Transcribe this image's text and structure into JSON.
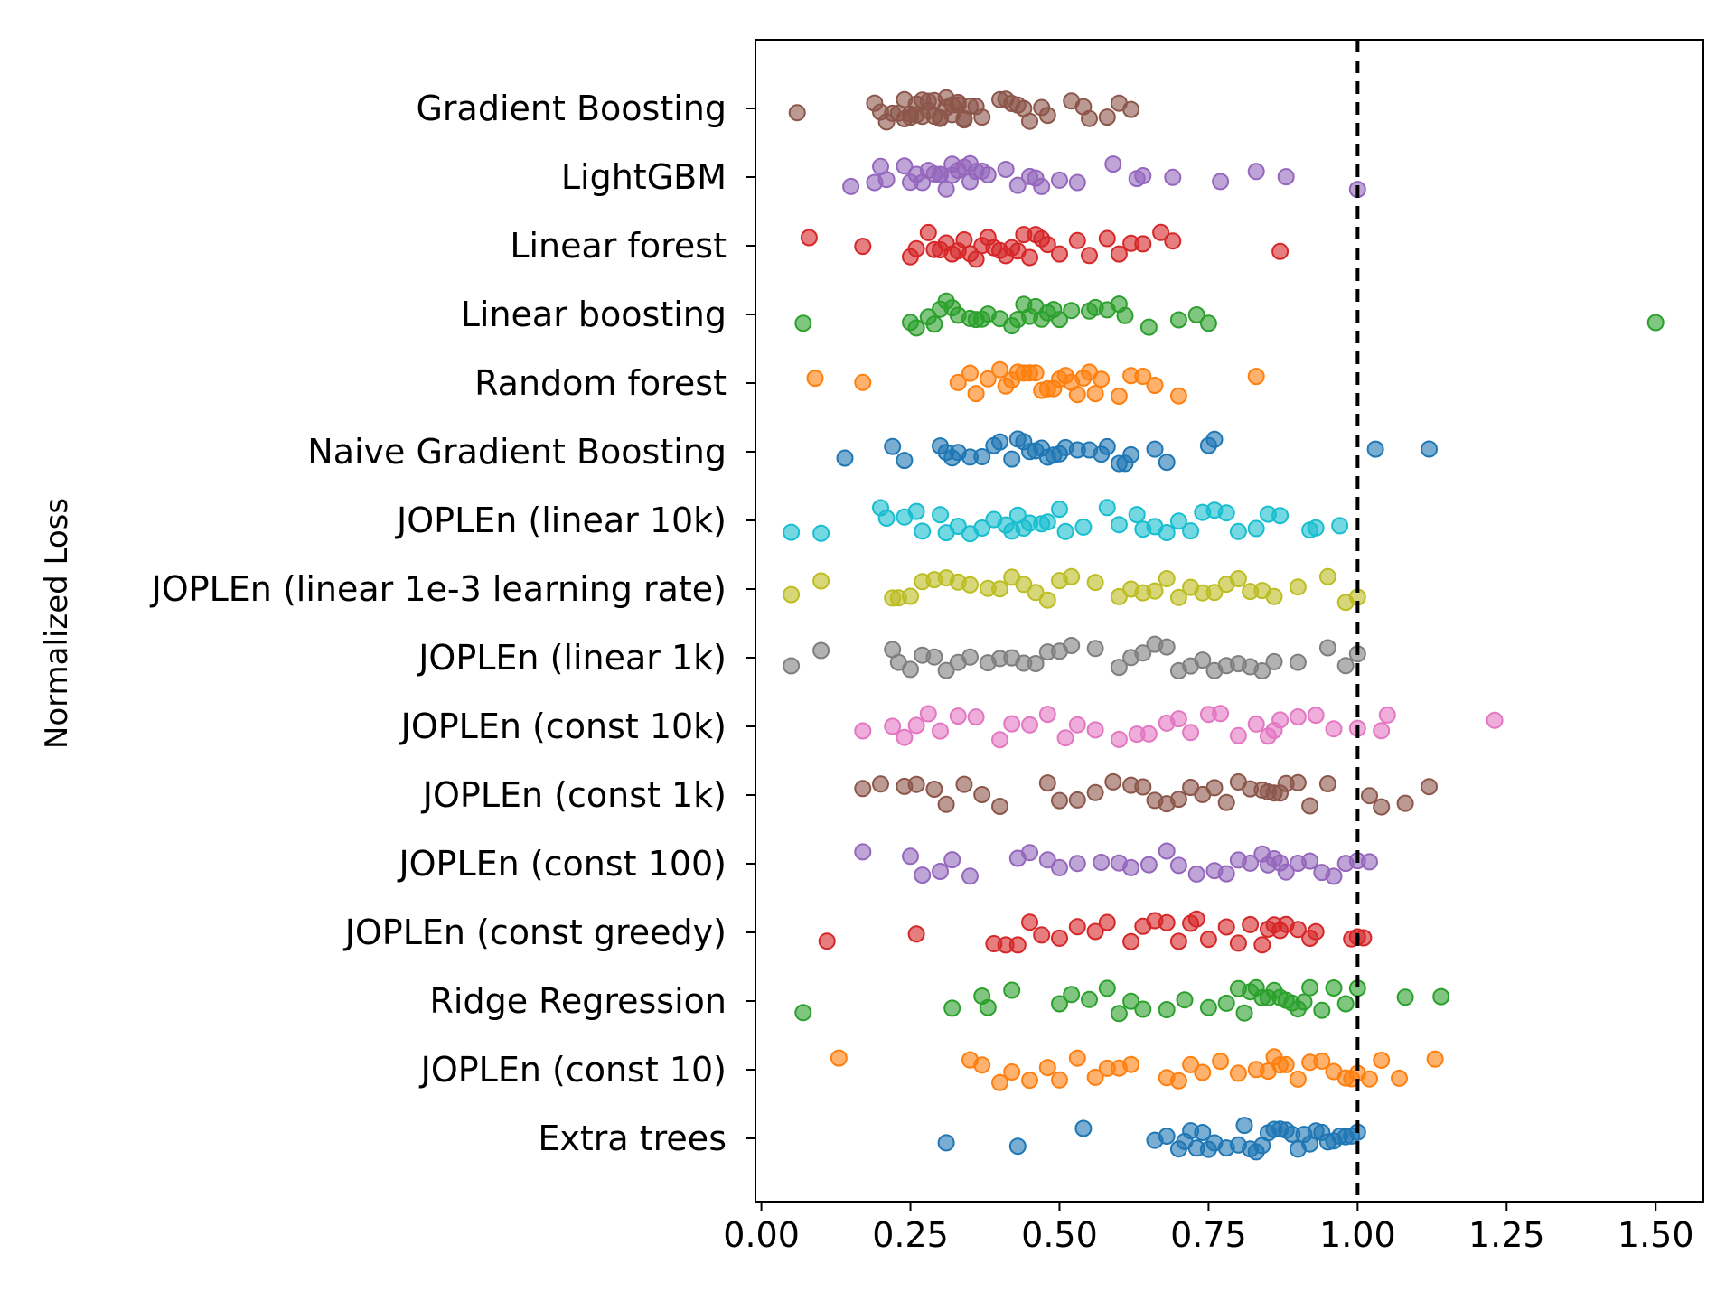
{
  "chart_data": {
    "type": "scatter",
    "title": "",
    "xlabel": "",
    "ylabel": "Normalized Loss",
    "xlim": [
      -0.01,
      1.58
    ],
    "xticks": [
      "0.00",
      "0.25",
      "0.50",
      "0.75",
      "1.00",
      "1.25",
      "1.50"
    ],
    "reference_line": {
      "x": 1.0,
      "style": "dashed",
      "color": "#000000"
    },
    "grid": false,
    "legend": "none",
    "marker_alpha": 0.6,
    "series": [
      {
        "name": "Gradient Boosting",
        "color": "#8c564b",
        "values": [
          0.06,
          0.19,
          0.2,
          0.21,
          0.22,
          0.23,
          0.24,
          0.24,
          0.25,
          0.25,
          0.26,
          0.26,
          0.27,
          0.27,
          0.28,
          0.28,
          0.29,
          0.29,
          0.3,
          0.3,
          0.31,
          0.31,
          0.32,
          0.32,
          0.33,
          0.33,
          0.34,
          0.34,
          0.35,
          0.36,
          0.37,
          0.4,
          0.41,
          0.42,
          0.43,
          0.44,
          0.45,
          0.47,
          0.48,
          0.52,
          0.54,
          0.55,
          0.58,
          0.6,
          0.62
        ]
      },
      {
        "name": "LightGBM",
        "color": "#9467bd",
        "values": [
          0.15,
          0.19,
          0.2,
          0.21,
          0.24,
          0.25,
          0.26,
          0.27,
          0.28,
          0.29,
          0.3,
          0.3,
          0.31,
          0.32,
          0.32,
          0.33,
          0.34,
          0.35,
          0.35,
          0.36,
          0.37,
          0.38,
          0.41,
          0.43,
          0.45,
          0.46,
          0.47,
          0.5,
          0.53,
          0.59,
          0.63,
          0.64,
          0.69,
          0.77,
          0.83,
          0.88,
          1.0
        ]
      },
      {
        "name": "Linear forest",
        "color": "#d62728",
        "values": [
          0.08,
          0.17,
          0.25,
          0.26,
          0.28,
          0.29,
          0.3,
          0.31,
          0.32,
          0.33,
          0.34,
          0.35,
          0.36,
          0.37,
          0.38,
          0.39,
          0.4,
          0.41,
          0.42,
          0.43,
          0.44,
          0.45,
          0.46,
          0.47,
          0.48,
          0.5,
          0.53,
          0.55,
          0.58,
          0.6,
          0.62,
          0.64,
          0.67,
          0.69,
          0.87
        ]
      },
      {
        "name": "Linear boosting",
        "color": "#2ca02c",
        "values": [
          0.07,
          0.25,
          0.26,
          0.28,
          0.29,
          0.3,
          0.31,
          0.32,
          0.33,
          0.35,
          0.36,
          0.37,
          0.38,
          0.4,
          0.42,
          0.43,
          0.44,
          0.45,
          0.46,
          0.47,
          0.48,
          0.49,
          0.5,
          0.52,
          0.55,
          0.56,
          0.58,
          0.6,
          0.61,
          0.65,
          0.7,
          0.73,
          0.75,
          1.5
        ]
      },
      {
        "name": "Random forest",
        "color": "#ff7f0e",
        "values": [
          0.09,
          0.17,
          0.33,
          0.35,
          0.36,
          0.38,
          0.4,
          0.41,
          0.42,
          0.43,
          0.44,
          0.45,
          0.46,
          0.47,
          0.48,
          0.49,
          0.5,
          0.51,
          0.52,
          0.53,
          0.54,
          0.55,
          0.56,
          0.57,
          0.6,
          0.62,
          0.64,
          0.66,
          0.7,
          0.83
        ]
      },
      {
        "name": "Naive Gradient Boosting",
        "color": "#1f77b4",
        "values": [
          0.14,
          0.22,
          0.24,
          0.3,
          0.31,
          0.32,
          0.33,
          0.35,
          0.37,
          0.39,
          0.4,
          0.42,
          0.43,
          0.44,
          0.45,
          0.46,
          0.47,
          0.48,
          0.49,
          0.5,
          0.51,
          0.53,
          0.55,
          0.57,
          0.58,
          0.6,
          0.61,
          0.62,
          0.66,
          0.68,
          0.75,
          0.76,
          1.03,
          1.12
        ]
      },
      {
        "name": "JOPLEn (linear 10k)",
        "color": "#17becf",
        "values": [
          0.05,
          0.1,
          0.2,
          0.21,
          0.24,
          0.26,
          0.27,
          0.3,
          0.31,
          0.33,
          0.35,
          0.37,
          0.39,
          0.41,
          0.42,
          0.43,
          0.44,
          0.45,
          0.47,
          0.48,
          0.5,
          0.51,
          0.54,
          0.58,
          0.6,
          0.63,
          0.64,
          0.66,
          0.68,
          0.7,
          0.72,
          0.74,
          0.76,
          0.78,
          0.8,
          0.83,
          0.85,
          0.87,
          0.92,
          0.93,
          0.97
        ]
      },
      {
        "name": "JOPLEn (linear 1e-3 learning rate)",
        "color": "#bcbd22",
        "values": [
          0.05,
          0.1,
          0.22,
          0.23,
          0.25,
          0.27,
          0.29,
          0.31,
          0.33,
          0.35,
          0.38,
          0.4,
          0.42,
          0.44,
          0.46,
          0.48,
          0.5,
          0.52,
          0.56,
          0.6,
          0.62,
          0.64,
          0.66,
          0.68,
          0.7,
          0.72,
          0.74,
          0.76,
          0.78,
          0.8,
          0.82,
          0.84,
          0.86,
          0.9,
          0.95,
          0.98,
          1.0
        ]
      },
      {
        "name": "JOPLEn (linear 1k)",
        "color": "#7f7f7f",
        "values": [
          0.05,
          0.1,
          0.22,
          0.23,
          0.25,
          0.27,
          0.29,
          0.31,
          0.33,
          0.35,
          0.38,
          0.4,
          0.42,
          0.44,
          0.46,
          0.48,
          0.5,
          0.52,
          0.56,
          0.6,
          0.62,
          0.64,
          0.66,
          0.68,
          0.7,
          0.72,
          0.74,
          0.76,
          0.78,
          0.8,
          0.82,
          0.84,
          0.86,
          0.9,
          0.95,
          0.98,
          1.0
        ]
      },
      {
        "name": "JOPLEn (const 10k)",
        "color": "#e377c2",
        "values": [
          0.17,
          0.22,
          0.24,
          0.26,
          0.28,
          0.3,
          0.33,
          0.36,
          0.4,
          0.42,
          0.45,
          0.48,
          0.51,
          0.53,
          0.56,
          0.6,
          0.63,
          0.65,
          0.68,
          0.7,
          0.72,
          0.75,
          0.77,
          0.8,
          0.83,
          0.85,
          0.86,
          0.87,
          0.9,
          0.93,
          0.96,
          1.0,
          1.04,
          1.05,
          1.23
        ]
      },
      {
        "name": "JOPLEn (const 1k)",
        "color": "#8c564b",
        "values": [
          0.17,
          0.2,
          0.24,
          0.26,
          0.29,
          0.31,
          0.34,
          0.37,
          0.4,
          0.48,
          0.5,
          0.53,
          0.56,
          0.59,
          0.62,
          0.64,
          0.66,
          0.68,
          0.7,
          0.72,
          0.74,
          0.76,
          0.78,
          0.8,
          0.82,
          0.84,
          0.85,
          0.86,
          0.87,
          0.88,
          0.9,
          0.92,
          0.95,
          1.02,
          1.04,
          1.08,
          1.12
        ]
      },
      {
        "name": "JOPLEn (const 100)",
        "color": "#9467bd",
        "values": [
          0.17,
          0.25,
          0.27,
          0.3,
          0.32,
          0.35,
          0.43,
          0.45,
          0.48,
          0.5,
          0.53,
          0.57,
          0.6,
          0.62,
          0.65,
          0.68,
          0.7,
          0.73,
          0.76,
          0.78,
          0.8,
          0.82,
          0.84,
          0.85,
          0.86,
          0.87,
          0.88,
          0.9,
          0.92,
          0.94,
          0.96,
          0.98,
          1.0,
          1.02
        ]
      },
      {
        "name": "JOPLEn (const greedy)",
        "color": "#d62728",
        "values": [
          0.11,
          0.26,
          0.39,
          0.41,
          0.43,
          0.45,
          0.47,
          0.5,
          0.53,
          0.56,
          0.58,
          0.62,
          0.64,
          0.66,
          0.68,
          0.7,
          0.72,
          0.73,
          0.75,
          0.78,
          0.8,
          0.82,
          0.84,
          0.85,
          0.86,
          0.87,
          0.88,
          0.9,
          0.92,
          0.93,
          0.99,
          1.0,
          1.01
        ]
      },
      {
        "name": "Ridge Regression",
        "color": "#2ca02c",
        "values": [
          0.07,
          0.32,
          0.37,
          0.38,
          0.42,
          0.5,
          0.52,
          0.55,
          0.58,
          0.6,
          0.62,
          0.64,
          0.68,
          0.71,
          0.75,
          0.78,
          0.8,
          0.81,
          0.82,
          0.83,
          0.84,
          0.85,
          0.86,
          0.87,
          0.88,
          0.89,
          0.9,
          0.91,
          0.92,
          0.94,
          0.96,
          0.98,
          1.0,
          1.08,
          1.14
        ]
      },
      {
        "name": "JOPLEn (const 10)",
        "color": "#ff7f0e",
        "values": [
          0.13,
          0.35,
          0.37,
          0.4,
          0.42,
          0.45,
          0.48,
          0.5,
          0.53,
          0.56,
          0.58,
          0.6,
          0.62,
          0.68,
          0.7,
          0.72,
          0.74,
          0.77,
          0.8,
          0.83,
          0.85,
          0.86,
          0.87,
          0.88,
          0.9,
          0.92,
          0.94,
          0.96,
          0.98,
          0.99,
          1.0,
          1.02,
          1.04,
          1.07,
          1.13
        ]
      },
      {
        "name": "Extra trees",
        "color": "#1f77b4",
        "values": [
          0.31,
          0.43,
          0.54,
          0.66,
          0.68,
          0.7,
          0.71,
          0.72,
          0.73,
          0.74,
          0.75,
          0.76,
          0.78,
          0.8,
          0.81,
          0.82,
          0.83,
          0.84,
          0.85,
          0.86,
          0.87,
          0.88,
          0.89,
          0.9,
          0.91,
          0.92,
          0.93,
          0.94,
          0.95,
          0.96,
          0.97,
          0.98,
          0.99,
          1.0
        ]
      }
    ]
  }
}
